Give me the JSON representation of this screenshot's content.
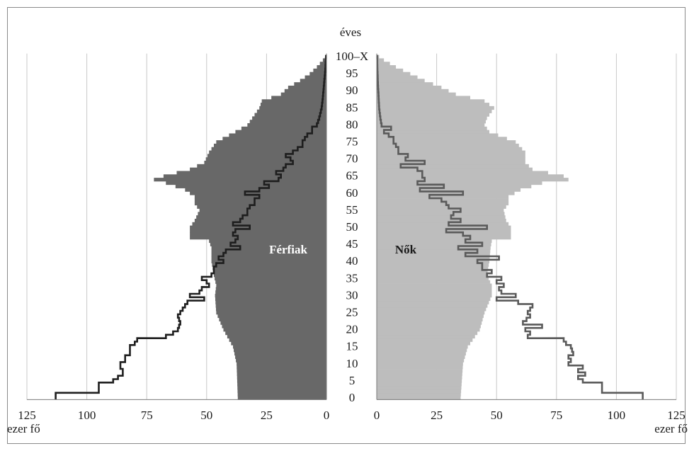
{
  "chart_data": {
    "type": "population-pyramid",
    "title": "éves",
    "unit_label": "ezer fő",
    "age_labels": [
      "0",
      "5",
      "10",
      "15",
      "20",
      "25",
      "30",
      "35",
      "40",
      "45",
      "50",
      "55",
      "60",
      "65",
      "70",
      "75",
      "80",
      "85",
      "90",
      "95",
      "100–X"
    ],
    "x_ticks": [
      125,
      100,
      75,
      50,
      25,
      0
    ],
    "xlim": [
      0,
      125
    ],
    "ages": [
      0,
      100
    ],
    "colors": {
      "male_fill": "#686868",
      "female_fill": "#bdbdbd",
      "male_outline": "#1e1e1e",
      "female_outline": "#5a5a5a",
      "grid": "#c8c8c8",
      "axis": "#7a7a7a"
    },
    "series": [
      {
        "name": "Férfiak",
        "side": "left",
        "fill_keypoints": [
          [
            0,
            37
          ],
          [
            10,
            37.5
          ],
          [
            15,
            39
          ],
          [
            20,
            43
          ],
          [
            25,
            46
          ],
          [
            30,
            46.5
          ],
          [
            33,
            46
          ],
          [
            36,
            47
          ],
          [
            40,
            48
          ],
          [
            44,
            48
          ],
          [
            46,
            49
          ],
          [
            47,
            57
          ],
          [
            50,
            57
          ],
          [
            52,
            55
          ],
          [
            55,
            53
          ],
          [
            57,
            55
          ],
          [
            59,
            55
          ],
          [
            61,
            59
          ],
          [
            63,
            67
          ],
          [
            64,
            72
          ],
          [
            65,
            68
          ],
          [
            67,
            57
          ],
          [
            69,
            51
          ],
          [
            72,
            49
          ],
          [
            75,
            46
          ],
          [
            78,
            38
          ],
          [
            80,
            33
          ],
          [
            82,
            31
          ],
          [
            85,
            28
          ],
          [
            87,
            27
          ],
          [
            89,
            19
          ],
          [
            91,
            16
          ],
          [
            93,
            11
          ],
          [
            95,
            7
          ],
          [
            97,
            4
          ],
          [
            99,
            1.5
          ],
          [
            100,
            0.5
          ]
        ],
        "outline_keypoints": [
          [
            0,
            113
          ],
          [
            1,
            113
          ],
          [
            2,
            95
          ],
          [
            4,
            95
          ],
          [
            5,
            89
          ],
          [
            6,
            87
          ],
          [
            7,
            85
          ],
          [
            8,
            85
          ],
          [
            9,
            86
          ],
          [
            10,
            86
          ],
          [
            11,
            84
          ],
          [
            12,
            84
          ],
          [
            13,
            82
          ],
          [
            15,
            82
          ],
          [
            16,
            80
          ],
          [
            17,
            79
          ],
          [
            18,
            67
          ],
          [
            19,
            64
          ],
          [
            20,
            62
          ],
          [
            22,
            61
          ],
          [
            24,
            62
          ],
          [
            25,
            61
          ],
          [
            27,
            59
          ],
          [
            28,
            58
          ],
          [
            29,
            51
          ],
          [
            30,
            57
          ],
          [
            31,
            53
          ],
          [
            32,
            52
          ],
          [
            33,
            49
          ],
          [
            34,
            50
          ],
          [
            35,
            52
          ],
          [
            36,
            48
          ],
          [
            37,
            47
          ],
          [
            38,
            47
          ],
          [
            39,
            46
          ],
          [
            40,
            43
          ],
          [
            41,
            45
          ],
          [
            42,
            43
          ],
          [
            43,
            42
          ],
          [
            44,
            36
          ],
          [
            45,
            40
          ],
          [
            46,
            38
          ],
          [
            47,
            37
          ],
          [
            48,
            39
          ],
          [
            49,
            38
          ],
          [
            50,
            32
          ],
          [
            51,
            39
          ],
          [
            52,
            36
          ],
          [
            53,
            35
          ],
          [
            54,
            33
          ],
          [
            55,
            33
          ],
          [
            56,
            32
          ],
          [
            57,
            30
          ],
          [
            58,
            30
          ],
          [
            59,
            28
          ],
          [
            60,
            34
          ],
          [
            61,
            28
          ],
          [
            62,
            24
          ],
          [
            63,
            26
          ],
          [
            64,
            20
          ],
          [
            65,
            19
          ],
          [
            66,
            21
          ],
          [
            67,
            18
          ],
          [
            68,
            17
          ],
          [
            69,
            14
          ],
          [
            70,
            15
          ],
          [
            71,
            17
          ],
          [
            72,
            14
          ],
          [
            73,
            12
          ],
          [
            74,
            10
          ],
          [
            75,
            10
          ],
          [
            76,
            9
          ],
          [
            77,
            8
          ],
          [
            78,
            6
          ],
          [
            79,
            6
          ],
          [
            80,
            4
          ],
          [
            82,
            3
          ],
          [
            85,
            2
          ],
          [
            88,
            1.5
          ],
          [
            92,
            1
          ],
          [
            96,
            0.5
          ],
          [
            100,
            0.2
          ]
        ]
      },
      {
        "name": "Nők",
        "side": "right",
        "fill_keypoints": [
          [
            0,
            35
          ],
          [
            10,
            36
          ],
          [
            15,
            38
          ],
          [
            20,
            43
          ],
          [
            25,
            45
          ],
          [
            30,
            48
          ],
          [
            33,
            48
          ],
          [
            36,
            46
          ],
          [
            40,
            47
          ],
          [
            44,
            47.5
          ],
          [
            46,
            48
          ],
          [
            47,
            56
          ],
          [
            50,
            56
          ],
          [
            52,
            54
          ],
          [
            55,
            53
          ],
          [
            57,
            55
          ],
          [
            59,
            55
          ],
          [
            61,
            60
          ],
          [
            63,
            69
          ],
          [
            64,
            80
          ],
          [
            65,
            78
          ],
          [
            67,
            65
          ],
          [
            69,
            62
          ],
          [
            72,
            62
          ],
          [
            75,
            58
          ],
          [
            78,
            47
          ],
          [
            80,
            45
          ],
          [
            82,
            46
          ],
          [
            85,
            49
          ],
          [
            87,
            45
          ],
          [
            89,
            33
          ],
          [
            91,
            27
          ],
          [
            93,
            20
          ],
          [
            95,
            14
          ],
          [
            97,
            8
          ],
          [
            99,
            3
          ],
          [
            100,
            1
          ]
        ],
        "outline_keypoints": [
          [
            0,
            111
          ],
          [
            1,
            111
          ],
          [
            2,
            94
          ],
          [
            4,
            94
          ],
          [
            5,
            86
          ],
          [
            6,
            84
          ],
          [
            7,
            87
          ],
          [
            8,
            84
          ],
          [
            9,
            86
          ],
          [
            10,
            80
          ],
          [
            11,
            81
          ],
          [
            12,
            80
          ],
          [
            13,
            82
          ],
          [
            15,
            81
          ],
          [
            16,
            79
          ],
          [
            17,
            78
          ],
          [
            18,
            63
          ],
          [
            19,
            64
          ],
          [
            20,
            62
          ],
          [
            21,
            69
          ],
          [
            22,
            61
          ],
          [
            24,
            64
          ],
          [
            25,
            63
          ],
          [
            27,
            65
          ],
          [
            28,
            59
          ],
          [
            29,
            50
          ],
          [
            30,
            58
          ],
          [
            31,
            52
          ],
          [
            32,
            51
          ],
          [
            33,
            53
          ],
          [
            34,
            50
          ],
          [
            35,
            52
          ],
          [
            36,
            46
          ],
          [
            37,
            48
          ],
          [
            38,
            44
          ],
          [
            39,
            44
          ],
          [
            40,
            42
          ],
          [
            41,
            51
          ],
          [
            42,
            37
          ],
          [
            43,
            42
          ],
          [
            44,
            34
          ],
          [
            45,
            44
          ],
          [
            46,
            37
          ],
          [
            47,
            39
          ],
          [
            48,
            36
          ],
          [
            49,
            29
          ],
          [
            50,
            46
          ],
          [
            51,
            30
          ],
          [
            52,
            35
          ],
          [
            53,
            31
          ],
          [
            54,
            32
          ],
          [
            55,
            35
          ],
          [
            56,
            30
          ],
          [
            57,
            29
          ],
          [
            58,
            27
          ],
          [
            59,
            22
          ],
          [
            60,
            36
          ],
          [
            61,
            18
          ],
          [
            62,
            28
          ],
          [
            63,
            17
          ],
          [
            64,
            20
          ],
          [
            65,
            19
          ],
          [
            66,
            19
          ],
          [
            67,
            17
          ],
          [
            68,
            10
          ],
          [
            69,
            20
          ],
          [
            70,
            12
          ],
          [
            71,
            13
          ],
          [
            72,
            9
          ],
          [
            73,
            9
          ],
          [
            74,
            8
          ],
          [
            75,
            7
          ],
          [
            76,
            7
          ],
          [
            77,
            5
          ],
          [
            78,
            3
          ],
          [
            79,
            6
          ],
          [
            80,
            2
          ],
          [
            82,
            1.5
          ],
          [
            85,
            1
          ],
          [
            88,
            0.8
          ],
          [
            92,
            0.5
          ],
          [
            96,
            0.3
          ],
          [
            100,
            0.2
          ]
        ]
      }
    ],
    "labels": {
      "male": "Férfiak",
      "female": "Nők"
    }
  }
}
